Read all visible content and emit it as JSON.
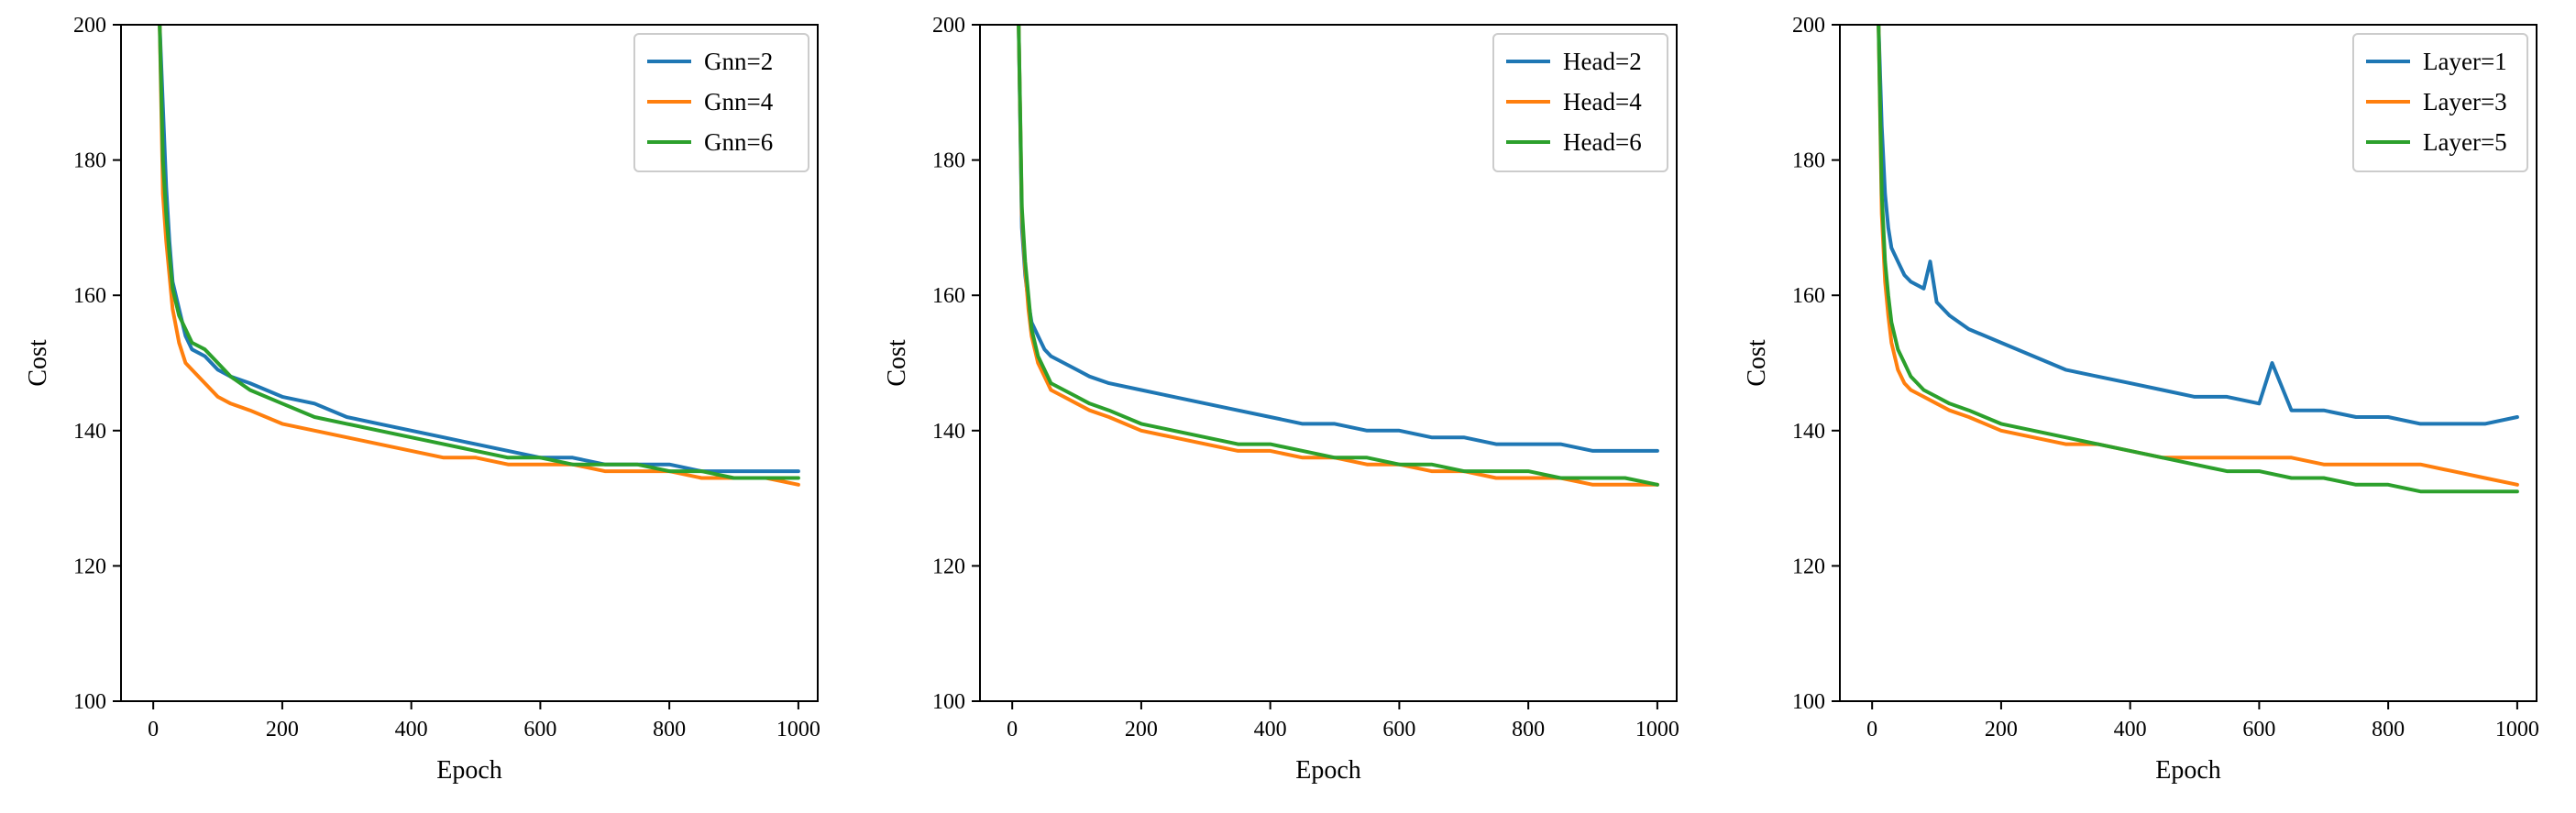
{
  "colors": {
    "blue": "#1f77b4",
    "orange": "#ff7f0e",
    "green": "#2ca02c"
  },
  "chart_data": [
    {
      "type": "line",
      "xlabel": "Epoch",
      "ylabel": "Cost",
      "xlim": [
        -50,
        1030
      ],
      "ylim": [
        100,
        200
      ],
      "xticks": [
        0,
        200,
        400,
        600,
        800,
        1000
      ],
      "yticks": [
        100,
        120,
        140,
        160,
        180,
        200
      ],
      "legend": "top-right",
      "grid": false,
      "series": [
        {
          "name": "Gnn=2",
          "color": "blue",
          "x": [
            10,
            15,
            20,
            25,
            30,
            40,
            50,
            60,
            80,
            100,
            120,
            150,
            200,
            250,
            300,
            350,
            400,
            450,
            500,
            550,
            600,
            650,
            700,
            750,
            800,
            850,
            900,
            950,
            1000
          ],
          "y": [
            200,
            188,
            176,
            168,
            162,
            158,
            154,
            152,
            151,
            149,
            148,
            147,
            145,
            144,
            142,
            141,
            140,
            139,
            138,
            137,
            136,
            136,
            135,
            135,
            135,
            134,
            134,
            134,
            134
          ]
        },
        {
          "name": "Gnn=4",
          "color": "orange",
          "x": [
            10,
            15,
            20,
            25,
            30,
            40,
            50,
            60,
            80,
            100,
            120,
            150,
            200,
            250,
            300,
            350,
            400,
            450,
            500,
            550,
            600,
            650,
            700,
            750,
            800,
            850,
            900,
            950,
            1000
          ],
          "y": [
            200,
            175,
            168,
            163,
            158,
            153,
            150,
            149,
            147,
            145,
            144,
            143,
            141,
            140,
            139,
            138,
            137,
            136,
            136,
            135,
            135,
            135,
            134,
            134,
            134,
            133,
            133,
            133,
            132
          ]
        },
        {
          "name": "Gnn=6",
          "color": "green",
          "x": [
            10,
            15,
            20,
            25,
            30,
            40,
            50,
            60,
            80,
            100,
            120,
            150,
            200,
            250,
            300,
            350,
            400,
            450,
            500,
            550,
            600,
            650,
            700,
            750,
            800,
            850,
            900,
            950,
            1000
          ],
          "y": [
            200,
            180,
            172,
            166,
            161,
            157,
            155,
            153,
            152,
            150,
            148,
            146,
            144,
            142,
            141,
            140,
            139,
            138,
            137,
            136,
            136,
            135,
            135,
            135,
            134,
            134,
            133,
            133,
            133
          ]
        }
      ]
    },
    {
      "type": "line",
      "xlabel": "Epoch",
      "ylabel": "Cost",
      "xlim": [
        -50,
        1030
      ],
      "ylim": [
        100,
        200
      ],
      "xticks": [
        0,
        200,
        400,
        600,
        800,
        1000
      ],
      "yticks": [
        100,
        120,
        140,
        160,
        180,
        200
      ],
      "legend": "top-right",
      "grid": false,
      "series": [
        {
          "name": "Head=2",
          "color": "blue",
          "x": [
            10,
            15,
            20,
            25,
            30,
            40,
            50,
            60,
            80,
            100,
            120,
            150,
            200,
            250,
            300,
            350,
            400,
            450,
            500,
            550,
            600,
            650,
            700,
            750,
            800,
            850,
            900,
            950,
            1000
          ],
          "y": [
            200,
            170,
            163,
            159,
            156,
            154,
            152,
            151,
            150,
            149,
            148,
            147,
            146,
            145,
            144,
            143,
            142,
            141,
            141,
            140,
            140,
            139,
            139,
            138,
            138,
            138,
            137,
            137,
            137
          ]
        },
        {
          "name": "Head=4",
          "color": "orange",
          "x": [
            10,
            15,
            20,
            25,
            30,
            40,
            50,
            60,
            80,
            100,
            120,
            150,
            200,
            250,
            300,
            350,
            400,
            450,
            500,
            550,
            600,
            650,
            700,
            750,
            800,
            850,
            900,
            950,
            1000
          ],
          "y": [
            200,
            172,
            164,
            158,
            154,
            150,
            148,
            146,
            145,
            144,
            143,
            142,
            140,
            139,
            138,
            137,
            137,
            136,
            136,
            135,
            135,
            134,
            134,
            133,
            133,
            133,
            132,
            132,
            132
          ]
        },
        {
          "name": "Head=6",
          "color": "green",
          "x": [
            10,
            15,
            20,
            25,
            30,
            40,
            50,
            60,
            80,
            100,
            120,
            150,
            200,
            250,
            300,
            350,
            400,
            450,
            500,
            550,
            600,
            650,
            700,
            750,
            800,
            850,
            900,
            950,
            1000
          ],
          "y": [
            200,
            173,
            165,
            160,
            155,
            151,
            149,
            147,
            146,
            145,
            144,
            143,
            141,
            140,
            139,
            138,
            138,
            137,
            136,
            136,
            135,
            135,
            134,
            134,
            134,
            133,
            133,
            133,
            132
          ]
        }
      ]
    },
    {
      "type": "line",
      "xlabel": "Epoch",
      "ylabel": "Cost",
      "xlim": [
        -50,
        1030
      ],
      "ylim": [
        100,
        200
      ],
      "xticks": [
        0,
        200,
        400,
        600,
        800,
        1000
      ],
      "yticks": [
        100,
        120,
        140,
        160,
        180,
        200
      ],
      "legend": "top-right",
      "grid": false,
      "series": [
        {
          "name": "Layer=1",
          "color": "blue",
          "x": [
            10,
            15,
            20,
            25,
            30,
            40,
            50,
            60,
            80,
            90,
            100,
            120,
            150,
            200,
            250,
            300,
            350,
            400,
            450,
            500,
            550,
            600,
            620,
            650,
            700,
            750,
            800,
            850,
            900,
            950,
            1000
          ],
          "y": [
            200,
            185,
            175,
            170,
            167,
            165,
            163,
            162,
            161,
            165,
            159,
            157,
            155,
            153,
            151,
            149,
            148,
            147,
            146,
            145,
            145,
            144,
            150,
            143,
            143,
            142,
            142,
            141,
            141,
            141,
            142
          ]
        },
        {
          "name": "Layer=3",
          "color": "orange",
          "x": [
            10,
            15,
            20,
            25,
            30,
            40,
            50,
            60,
            80,
            100,
            120,
            150,
            200,
            250,
            300,
            350,
            400,
            450,
            500,
            550,
            600,
            650,
            700,
            750,
            800,
            850,
            900,
            950,
            1000
          ],
          "y": [
            200,
            172,
            162,
            157,
            153,
            149,
            147,
            146,
            145,
            144,
            143,
            142,
            140,
            139,
            138,
            138,
            137,
            136,
            136,
            136,
            136,
            136,
            135,
            135,
            135,
            135,
            134,
            133,
            132
          ]
        },
        {
          "name": "Layer=5",
          "color": "green",
          "x": [
            10,
            15,
            20,
            25,
            30,
            40,
            50,
            60,
            80,
            100,
            120,
            150,
            200,
            250,
            300,
            350,
            400,
            450,
            500,
            550,
            600,
            650,
            700,
            750,
            800,
            850,
            900,
            950,
            1000
          ],
          "y": [
            200,
            175,
            165,
            160,
            156,
            152,
            150,
            148,
            146,
            145,
            144,
            143,
            141,
            140,
            139,
            138,
            137,
            136,
            135,
            134,
            134,
            133,
            133,
            132,
            132,
            131,
            131,
            131,
            131
          ]
        }
      ]
    }
  ]
}
